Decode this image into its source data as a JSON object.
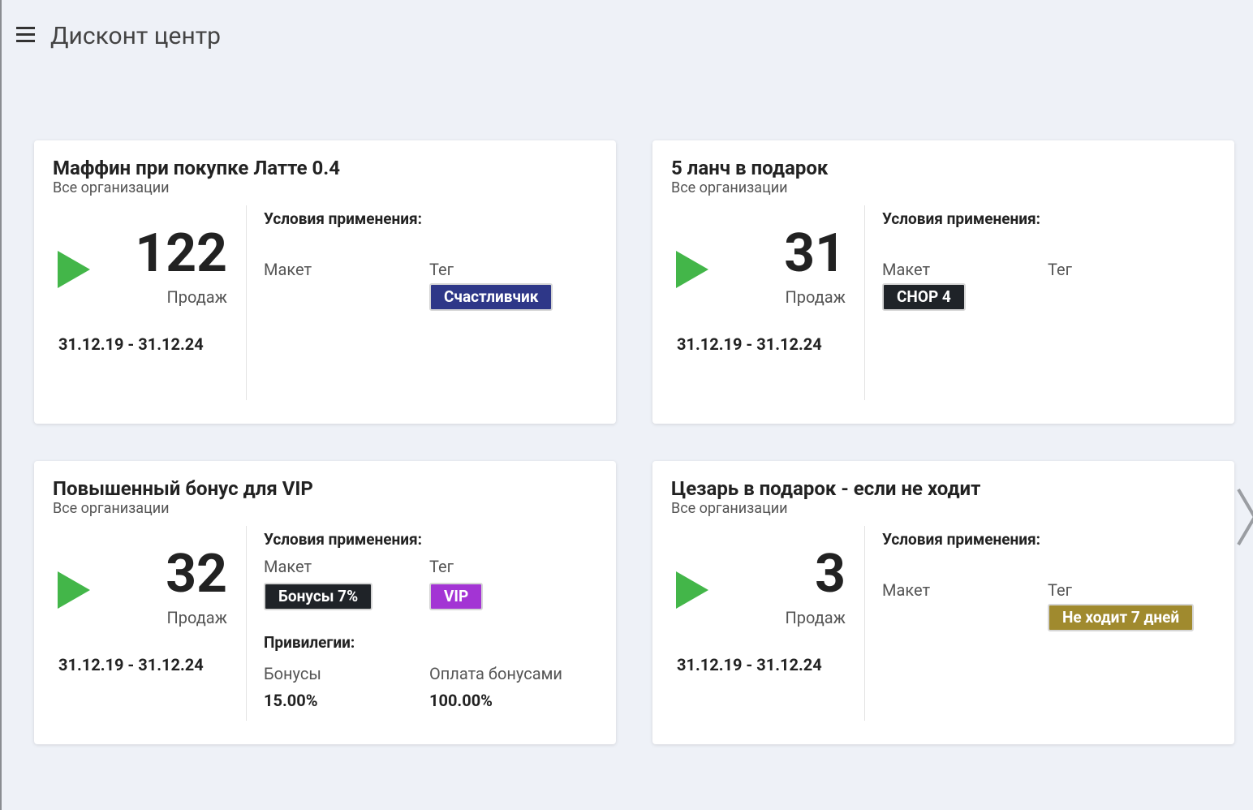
{
  "header": {
    "title": "Дисконт центр"
  },
  "cards": [
    {
      "title": "Маффин при покупке Латте 0.4",
      "subtitle": "Все организации",
      "sales": 122,
      "sales_label": "Продаж",
      "dates": "31.12.19 - 31.12.24",
      "conditions_title": "Условия применения:",
      "layout_label": "Макет",
      "tag_label": "Тег",
      "tag_badge": {
        "text": "Счастливчик",
        "color": "#2e3788"
      }
    },
    {
      "title": "5 ланч в подарок",
      "subtitle": "Все организации",
      "sales": 31,
      "sales_label": "Продаж",
      "dates": "31.12.19 - 31.12.24",
      "conditions_title": "Условия применения:",
      "layout_label": "Макет",
      "tag_label": "Тег",
      "layout_badge": {
        "text": "CHOP 4",
        "color": "#1f2328"
      }
    },
    {
      "title": "Повышенный бонус для VIP",
      "subtitle": "Все организации",
      "sales": 32,
      "sales_label": "Продаж",
      "dates": "31.12.19 - 31.12.24",
      "conditions_title": "Условия применения:",
      "layout_label": "Макет",
      "tag_label": "Тег",
      "layout_badge": {
        "text": "Бонусы 7%",
        "color": "#1f2328"
      },
      "tag_badge": {
        "text": "VIP",
        "color": "#a334d4"
      },
      "privileges": {
        "title": "Привилегии:",
        "items": [
          {
            "label": "Бонусы",
            "value": "15.00%"
          },
          {
            "label": "Оплата бонусами",
            "value": "100.00%"
          }
        ]
      }
    },
    {
      "title": "Цезарь в подарок - если не ходит",
      "subtitle": "Все организации",
      "sales": 3,
      "sales_label": "Продаж",
      "dates": "31.12.19 - 31.12.24",
      "conditions_title": "Условия применения:",
      "layout_label": "Макет",
      "tag_label": "Тег",
      "tag_badge": {
        "text": "Не ходит 7 дней",
        "color": "#a08a2e"
      }
    }
  ]
}
